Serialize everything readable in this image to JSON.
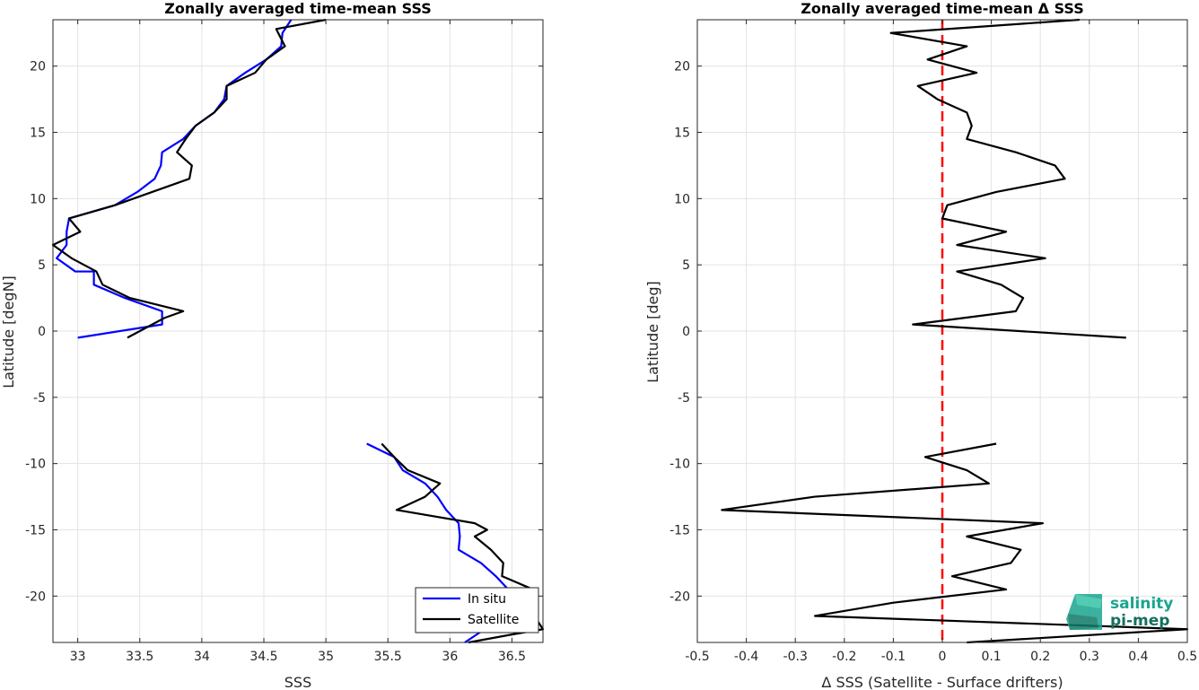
{
  "chart_data": [
    {
      "type": "line",
      "title": "Zonally averaged time-mean SSS",
      "xlabel": "SSS",
      "ylabel": "Latitude [degN]",
      "xlim": [
        32.8,
        36.75
      ],
      "ylim": [
        -23.5,
        23.5
      ],
      "xticks": [
        33,
        33.5,
        34,
        34.5,
        35,
        35.5,
        36,
        36.5
      ],
      "yticks": [
        -20,
        -15,
        -10,
        -5,
        0,
        5,
        10,
        15,
        20
      ],
      "grid": true,
      "legend": "bottom-right",
      "series": [
        {
          "name": "In situ",
          "color": "#0000ff",
          "segments": [
            [
              [
                34.72,
                23.5
              ],
              [
                34.65,
                22.5
              ],
              [
                34.64,
                21.5
              ],
              [
                34.52,
                20.5
              ],
              [
                34.35,
                19.5
              ],
              [
                34.2,
                18.5
              ],
              [
                34.18,
                17.5
              ],
              [
                34.1,
                16.5
              ],
              [
                33.95,
                15.5
              ],
              [
                33.85,
                14.5
              ],
              [
                33.68,
                13.5
              ],
              [
                33.67,
                12.5
              ],
              [
                33.62,
                11.5
              ],
              [
                33.48,
                10.5
              ],
              [
                33.3,
                9.5
              ],
              [
                32.93,
                8.5
              ],
              [
                32.91,
                7.5
              ],
              [
                32.91,
                6.5
              ],
              [
                32.83,
                5.5
              ],
              [
                32.98,
                4.5
              ],
              [
                33.13,
                4.5
              ],
              [
                33.13,
                3.5
              ],
              [
                33.38,
                2.5
              ],
              [
                33.68,
                1.5
              ],
              [
                33.68,
                0.5
              ],
              [
                33.0,
                -0.5
              ]
            ],
            [
              [
                35.33,
                -8.5
              ],
              [
                35.55,
                -9.5
              ],
              [
                35.62,
                -10.5
              ],
              [
                35.8,
                -11.5
              ],
              [
                35.9,
                -12.5
              ],
              [
                35.97,
                -13.5
              ],
              [
                36.07,
                -14.5
              ],
              [
                36.08,
                -15.5
              ],
              [
                36.07,
                -16.5
              ],
              [
                36.25,
                -17.5
              ],
              [
                36.37,
                -18.5
              ],
              [
                36.47,
                -19.5
              ],
              [
                36.55,
                -20.5
              ],
              [
                36.52,
                -21.5
              ],
              [
                36.28,
                -22.5
              ],
              [
                36.12,
                -23.5
              ]
            ]
          ]
        },
        {
          "name": "Satellite",
          "color": "#000000",
          "segments": [
            [
              [
                35.0,
                23.5
              ],
              [
                34.6,
                22.8
              ],
              [
                34.67,
                21.5
              ],
              [
                34.52,
                20.5
              ],
              [
                34.43,
                19.5
              ],
              [
                34.2,
                18.5
              ],
              [
                34.2,
                17.5
              ],
              [
                34.1,
                16.5
              ],
              [
                33.95,
                15.5
              ],
              [
                33.87,
                14.5
              ],
              [
                33.8,
                13.5
              ],
              [
                33.92,
                12.5
              ],
              [
                33.9,
                11.5
              ],
              [
                33.3,
                9.5
              ],
              [
                32.93,
                8.5
              ],
              [
                33.02,
                7.5
              ],
              [
                32.8,
                6.5
              ],
              [
                32.95,
                5.5
              ],
              [
                33.15,
                4.5
              ],
              [
                33.2,
                3.5
              ],
              [
                33.42,
                2.5
              ],
              [
                33.85,
                1.5
              ],
              [
                33.7,
                1.0
              ],
              [
                33.4,
                -0.5
              ]
            ],
            [
              [
                35.45,
                -8.5
              ],
              [
                35.55,
                -9.5
              ],
              [
                35.66,
                -10.5
              ],
              [
                35.92,
                -11.5
              ],
              [
                35.8,
                -12.5
              ],
              [
                35.57,
                -13.5
              ],
              [
                36.2,
                -14.5
              ],
              [
                36.3,
                -15.0
              ],
              [
                36.2,
                -15.5
              ],
              [
                36.33,
                -16.5
              ],
              [
                36.43,
                -17.5
              ],
              [
                36.42,
                -18.5
              ],
              [
                36.67,
                -19.5
              ],
              [
                36.53,
                -20.5
              ],
              [
                36.68,
                -21.5
              ],
              [
                36.75,
                -22.5
              ],
              [
                36.5,
                -22.9
              ],
              [
                36.15,
                -23.5
              ]
            ]
          ]
        }
      ]
    },
    {
      "type": "line",
      "title": "Zonally averaged time-mean Δ SSS",
      "xlabel": "Δ SSS (Satellite - Surface drifters)",
      "ylabel": "Latitude [deg]",
      "xlim": [
        -0.5,
        0.5
      ],
      "ylim": [
        -23.5,
        23.5
      ],
      "xticks": [
        -0.5,
        -0.4,
        -0.3,
        -0.2,
        -0.1,
        0,
        0.1,
        0.2,
        0.3,
        0.4,
        0.5
      ],
      "yticks": [
        -20,
        -15,
        -10,
        -5,
        0,
        5,
        10,
        15,
        20
      ],
      "grid": true,
      "zero_line": {
        "x": 0,
        "color": "#ff0000",
        "style": "dashed"
      },
      "series": [
        {
          "name": "",
          "color": "#000000",
          "segments": [
            [
              [
                0.28,
                23.5
              ],
              [
                -0.105,
                22.5
              ],
              [
                0.05,
                21.5
              ],
              [
                -0.03,
                20.5
              ],
              [
                0.07,
                19.5
              ],
              [
                -0.05,
                18.5
              ],
              [
                -0.01,
                17.5
              ],
              [
                0.05,
                16.5
              ],
              [
                0.06,
                15.5
              ],
              [
                0.05,
                14.5
              ],
              [
                0.15,
                13.5
              ],
              [
                0.23,
                12.5
              ],
              [
                0.25,
                11.5
              ],
              [
                0.11,
                10.5
              ],
              [
                0.01,
                9.5
              ],
              [
                0.0,
                8.5
              ],
              [
                0.13,
                7.5
              ],
              [
                0.03,
                6.5
              ],
              [
                0.21,
                5.5
              ],
              [
                0.03,
                4.5
              ],
              [
                0.12,
                3.5
              ],
              [
                0.165,
                2.5
              ],
              [
                0.15,
                1.5
              ],
              [
                -0.06,
                0.5
              ],
              [
                0.375,
                -0.5
              ]
            ],
            [
              [
                0.11,
                -8.5
              ],
              [
                -0.035,
                -9.5
              ],
              [
                0.05,
                -10.5
              ],
              [
                0.095,
                -11.5
              ],
              [
                -0.26,
                -12.5
              ],
              [
                -0.45,
                -13.5
              ],
              [
                0.205,
                -14.5
              ],
              [
                0.05,
                -15.5
              ],
              [
                0.16,
                -16.5
              ],
              [
                0.14,
                -17.5
              ],
              [
                0.02,
                -18.5
              ],
              [
                0.13,
                -19.5
              ],
              [
                -0.1,
                -20.5
              ],
              [
                -0.26,
                -21.5
              ],
              [
                0.5,
                -22.5
              ],
              [
                0.05,
                -23.5
              ]
            ]
          ]
        }
      ]
    }
  ],
  "legend": {
    "items": [
      {
        "label": "In situ",
        "color": "#0000ff"
      },
      {
        "label": "Satellite",
        "color": "#000000"
      }
    ]
  },
  "logo": {
    "line1": "salinity",
    "line2": "pi-mep"
  }
}
